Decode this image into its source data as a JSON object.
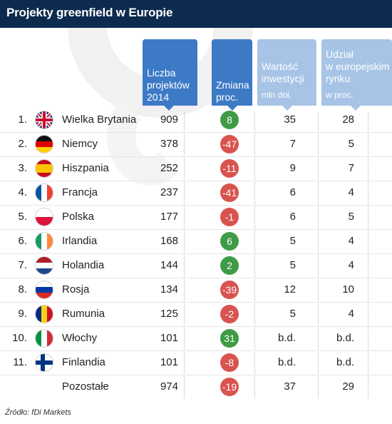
{
  "title": "Projekty greenfield w Europie",
  "colors": {
    "topbar": "#0d2b4e",
    "header_blue": "#3d7ac6",
    "header_light": "#a7c4e6",
    "positive": "#3f9b45",
    "negative": "#d9534f"
  },
  "headers": {
    "projects": {
      "lines": [
        "Liczba",
        "projektów",
        "2014"
      ]
    },
    "change": {
      "lines": [
        "Zmiana",
        "proc."
      ]
    },
    "value": {
      "lines": [
        "Wartość",
        "inwestycji"
      ],
      "unit": "mln dol."
    },
    "share": {
      "lines": [
        "Udział",
        "w europejskim",
        "rynku"
      ],
      "unit": "w proc."
    }
  },
  "chart_data": {
    "type": "table",
    "columns": [
      "Liczba projektów 2014",
      "Zmiana proc.",
      "Wartość inwestycji mln dol.",
      "Udział w europejskim rynku w proc."
    ],
    "rows": [
      {
        "rank": "1.",
        "country": "Wielka Brytania",
        "flag": "uk-flag-icon",
        "projects": "909",
        "change": "8",
        "value": "35",
        "share": "28"
      },
      {
        "rank": "2.",
        "country": "Niemcy",
        "flag": "germany-flag-icon",
        "projects": "378",
        "change": "-47",
        "value": "7",
        "share": "5"
      },
      {
        "rank": "3.",
        "country": "Hiszpania",
        "flag": "spain-flag-icon",
        "projects": "252",
        "change": "-11",
        "value": "9",
        "share": "7"
      },
      {
        "rank": "4.",
        "country": "Francja",
        "flag": "france-flag-icon",
        "projects": "237",
        "change": "-41",
        "value": "6",
        "share": "4"
      },
      {
        "rank": "5.",
        "country": "Polska",
        "flag": "poland-flag-icon",
        "projects": "177",
        "change": "-1",
        "value": "6",
        "share": "5"
      },
      {
        "rank": "6.",
        "country": "Irlandia",
        "flag": "ireland-flag-icon",
        "projects": "168",
        "change": "6",
        "value": "5",
        "share": "4"
      },
      {
        "rank": "7.",
        "country": "Holandia",
        "flag": "netherlands-flag-icon",
        "projects": "144",
        "change": "2",
        "value": "5",
        "share": "4"
      },
      {
        "rank": "8.",
        "country": "Rosja",
        "flag": "russia-flag-icon",
        "projects": "134",
        "change": "-39",
        "value": "12",
        "share": "10"
      },
      {
        "rank": "9.",
        "country": "Rumunia",
        "flag": "romania-flag-icon",
        "projects": "125",
        "change": "-2",
        "value": "5",
        "share": "4"
      },
      {
        "rank": "10.",
        "country": "Włochy",
        "flag": "italy-flag-icon",
        "projects": "101",
        "change": "31",
        "value": "b.d.",
        "share": "b.d."
      },
      {
        "rank": "11.",
        "country": "Finlandia",
        "flag": "finland-flag-icon",
        "projects": "101",
        "change": "-8",
        "value": "b.d.",
        "share": "b.d."
      },
      {
        "rank": "",
        "country": "Pozostałe",
        "flag": "",
        "projects": "974",
        "change": "-19",
        "value": "37",
        "share": "29"
      }
    ]
  },
  "source": "Źródło: fDi Markets"
}
